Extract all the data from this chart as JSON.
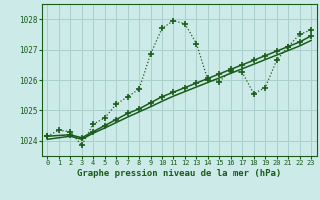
{
  "title": "Graphe pression niveau de la mer (hPa)",
  "background_color": "#cceae8",
  "grid_color": "#aacfcd",
  "line_color": "#1a5c1a",
  "xlim": [
    -0.5,
    23.5
  ],
  "ylim": [
    1023.5,
    1028.5
  ],
  "yticks": [
    1024,
    1025,
    1026,
    1027,
    1028
  ],
  "xticks": [
    0,
    1,
    2,
    3,
    4,
    5,
    6,
    7,
    8,
    9,
    10,
    11,
    12,
    13,
    14,
    15,
    16,
    17,
    18,
    19,
    20,
    21,
    22,
    23
  ],
  "series1_x": [
    0,
    1,
    2,
    3,
    4,
    5,
    6,
    7,
    8,
    9,
    10,
    11,
    12,
    13,
    14,
    15,
    16,
    17,
    18,
    19,
    20,
    21,
    22,
    23
  ],
  "series1_y": [
    1024.15,
    1024.35,
    1024.3,
    1023.85,
    1024.55,
    1024.75,
    1025.2,
    1025.45,
    1025.7,
    1026.85,
    1027.7,
    1027.95,
    1027.85,
    1027.2,
    1026.0,
    1025.95,
    1026.3,
    1026.25,
    1025.55,
    1025.75,
    1026.65,
    1027.1,
    1027.5,
    1027.65
  ],
  "series2_x": [
    0,
    2,
    3,
    4,
    5,
    6,
    7,
    8,
    9,
    10,
    11,
    12,
    13,
    14,
    15,
    16,
    17,
    18,
    19,
    20,
    21,
    22,
    23
  ],
  "series2_y": [
    1024.15,
    1024.2,
    1024.1,
    1024.3,
    1024.5,
    1024.7,
    1024.9,
    1025.05,
    1025.25,
    1025.45,
    1025.6,
    1025.75,
    1025.9,
    1026.05,
    1026.2,
    1026.35,
    1026.5,
    1026.65,
    1026.8,
    1026.95,
    1027.1,
    1027.25,
    1027.45
  ],
  "series3_x": [
    0,
    2,
    3,
    4,
    5,
    6,
    7,
    8,
    9,
    10,
    11,
    12,
    13,
    14,
    15,
    16,
    17,
    18,
    19,
    20,
    21,
    22,
    23
  ],
  "series3_y": [
    1024.05,
    1024.15,
    1024.05,
    1024.25,
    1024.42,
    1024.6,
    1024.78,
    1024.95,
    1025.12,
    1025.3,
    1025.47,
    1025.62,
    1025.77,
    1025.92,
    1026.07,
    1026.22,
    1026.37,
    1026.52,
    1026.67,
    1026.82,
    1026.97,
    1027.12,
    1027.3
  ]
}
